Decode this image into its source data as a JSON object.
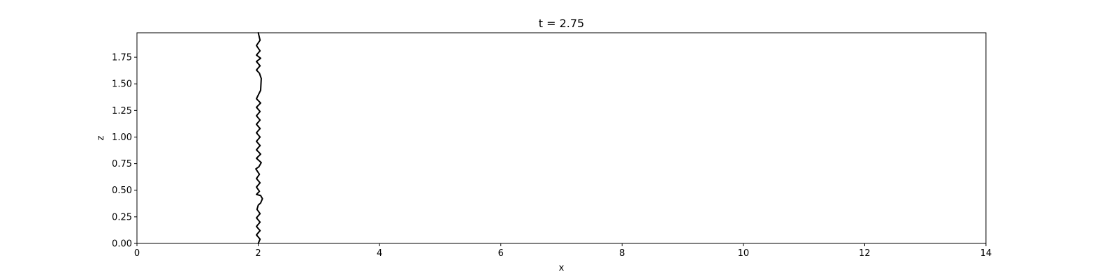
{
  "chart_data": {
    "type": "line",
    "title": "t = 2.75",
    "xlabel": "x",
    "ylabel": "z",
    "xlim": [
      0,
      14
    ],
    "ylim": [
      0,
      1.98
    ],
    "xticks": [
      0,
      2,
      4,
      6,
      8,
      10,
      12,
      14
    ],
    "xtick_labels": [
      "0",
      "2",
      "4",
      "6",
      "8",
      "10",
      "12",
      "14"
    ],
    "yticks": [
      0,
      0.25,
      0.5,
      0.75,
      1.0,
      1.25,
      1.5,
      1.75
    ],
    "ytick_labels": [
      "0.00",
      "0.25",
      "0.50",
      "0.75",
      "1.00",
      "1.25",
      "1.50",
      "1.75"
    ],
    "grid": false,
    "series": [
      {
        "color": "#000000",
        "x": [
          2.0,
          2.03,
          1.97,
          2.03,
          1.97,
          2.03,
          1.97,
          2.03,
          1.98,
          2.0,
          2.04,
          2.07,
          2.04,
          1.97,
          2.02,
          1.97,
          2.03,
          1.97,
          2.02,
          1.96,
          2.01,
          2.05,
          1.97,
          2.04,
          1.97,
          2.03,
          1.97,
          2.03,
          1.97,
          2.03,
          1.97,
          2.03,
          1.97,
          2.03,
          1.97,
          2.04,
          1.97,
          2.04,
          2.05,
          2.02,
          1.97,
          2.03,
          1.97,
          2.04,
          1.97,
          2.03,
          1.97,
          2.03,
          2.0
        ],
        "y": [
          0.0,
          0.04,
          0.08,
          0.12,
          0.16,
          0.2,
          0.24,
          0.28,
          0.32,
          0.36,
          0.38,
          0.42,
          0.45,
          0.46,
          0.49,
          0.53,
          0.57,
          0.61,
          0.65,
          0.7,
          0.72,
          0.76,
          0.8,
          0.84,
          0.88,
          0.92,
          0.96,
          1.0,
          1.04,
          1.08,
          1.12,
          1.16,
          1.2,
          1.24,
          1.28,
          1.32,
          1.36,
          1.44,
          1.55,
          1.6,
          1.63,
          1.67,
          1.71,
          1.74,
          1.77,
          1.81,
          1.86,
          1.91,
          1.98
        ]
      }
    ]
  }
}
